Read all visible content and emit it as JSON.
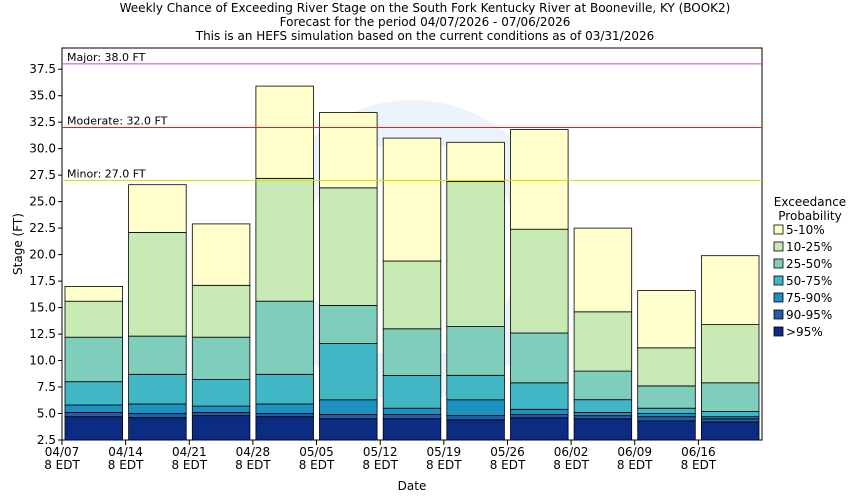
{
  "chart_data": {
    "type": "bar",
    "title_lines": [
      "Weekly Chance of Exceeding River Stage on the South Fork Kentucky River at Booneville, KY (BOOK2)",
      "Forecast for the period 04/07/2026 - 07/06/2026",
      "This is an HEFS simulation based on the current conditions as of 03/31/2026"
    ],
    "xlabel": "Date",
    "ylabel": "Stage (FT)",
    "ylim": [
      2.5,
      39.5
    ],
    "yticks": [
      "2.5",
      "5.0",
      "7.5",
      "10.0",
      "12.5",
      "15.0",
      "17.5",
      "20.0",
      "22.5",
      "25.0",
      "27.5",
      "30.0",
      "32.5",
      "35.0",
      "37.5"
    ],
    "x_tick_labels": [
      {
        "date": "04/07",
        "tz": "8 EDT"
      },
      {
        "date": "04/14",
        "tz": "8 EDT"
      },
      {
        "date": "04/21",
        "tz": "8 EDT"
      },
      {
        "date": "04/28",
        "tz": "8 EDT"
      },
      {
        "date": "05/05",
        "tz": "8 EDT"
      },
      {
        "date": "05/12",
        "tz": "8 EDT"
      },
      {
        "date": "05/19",
        "tz": "8 EDT"
      },
      {
        "date": "05/26",
        "tz": "8 EDT"
      },
      {
        "date": "06/02",
        "tz": "8 EDT"
      },
      {
        "date": "06/09",
        "tz": "8 EDT"
      },
      {
        "date": "06/16",
        "tz": "8 EDT"
      }
    ],
    "flood_levels": [
      {
        "label": "Major: 38.0 FT",
        "value": 38.0,
        "color": "#cc44cc"
      },
      {
        "label": "Moderate: 32.0 FT",
        "value": 32.0,
        "color": "#dd2222"
      },
      {
        "label": "Minor: 27.0 FT",
        "value": 27.0,
        "color": "#dddd00"
      }
    ],
    "legend": {
      "title_lines": [
        "Exceedance",
        "Probability"
      ],
      "placement": "right"
    },
    "bands": [
      {
        "name": "5-10%",
        "color": "#ffffcc"
      },
      {
        "name": "10-25%",
        "color": "#c7e9b4"
      },
      {
        "name": "25-50%",
        "color": "#7fcdbb"
      },
      {
        "name": "50-75%",
        "color": "#41b6c4"
      },
      {
        "name": "75-90%",
        "color": "#1d91c0"
      },
      {
        "name": "90-95%",
        "color": "#225ea8"
      },
      {
        "name": ">95%",
        "color": "#0c2c84"
      }
    ],
    "weeks": [
      {
        "start": "04/07",
        "bounds": [
          2.5,
          4.7,
          5.1,
          5.8,
          8.0,
          12.2,
          15.6,
          17.0
        ]
      },
      {
        "start": "04/14",
        "bounds": [
          2.5,
          4.6,
          5.0,
          5.9,
          8.7,
          12.3,
          22.1,
          26.6
        ]
      },
      {
        "start": "04/21",
        "bounds": [
          2.5,
          4.8,
          5.1,
          5.7,
          8.2,
          12.2,
          17.1,
          22.9
        ]
      },
      {
        "start": "04/28",
        "bounds": [
          2.5,
          4.7,
          5.0,
          5.9,
          8.7,
          15.6,
          27.2,
          35.9
        ]
      },
      {
        "start": "05/05",
        "bounds": [
          2.5,
          4.5,
          4.9,
          6.3,
          11.6,
          15.2,
          26.3,
          33.4
        ]
      },
      {
        "start": "05/12",
        "bounds": [
          2.5,
          4.5,
          4.9,
          5.5,
          8.6,
          13.0,
          19.4,
          31.0
        ]
      },
      {
        "start": "05/19",
        "bounds": [
          2.5,
          4.4,
          4.8,
          6.3,
          8.6,
          13.2,
          26.9,
          30.6
        ]
      },
      {
        "start": "05/26",
        "bounds": [
          2.5,
          4.6,
          4.9,
          5.4,
          7.9,
          12.6,
          22.4,
          31.8
        ]
      },
      {
        "start": "06/02",
        "bounds": [
          2.5,
          4.5,
          4.8,
          5.1,
          6.3,
          9.0,
          14.6,
          22.5
        ]
      },
      {
        "start": "06/09",
        "bounds": [
          2.5,
          4.3,
          4.7,
          5.0,
          5.5,
          7.6,
          11.2,
          16.6
        ]
      },
      {
        "start": "06/16",
        "bounds": [
          2.5,
          4.2,
          4.5,
          4.7,
          5.2,
          7.9,
          13.4,
          19.9
        ]
      }
    ],
    "grid": false
  }
}
